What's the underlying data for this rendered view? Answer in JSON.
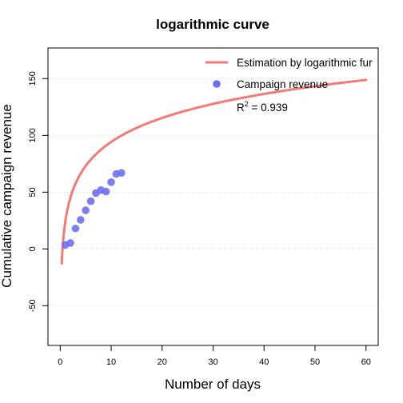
{
  "chart_data": {
    "type": "scatter",
    "title": "logarithmic curve",
    "xlabel": "Number of days",
    "ylabel": "Cumulative campaign revenue",
    "xlim": [
      -2.4,
      62.4
    ],
    "ylim": [
      -85,
      177
    ],
    "x_ticks": [
      0,
      10,
      20,
      30,
      40,
      50,
      60
    ],
    "y_ticks": [
      -50,
      0,
      50,
      100,
      150
    ],
    "grid": "horizontal dotted",
    "legend_position": "top-right",
    "series": [
      {
        "name": "Estimation by logarithmic fur",
        "kind": "line",
        "color": "#f87878",
        "model": "log",
        "x_range": [
          0.3,
          60
        ],
        "fit": {
          "a": 30.5,
          "b": 24.0
        }
      },
      {
        "name": "Campaign revenue",
        "kind": "points",
        "color": "#6f6ff5",
        "x": [
          1,
          2,
          3,
          4,
          5,
          6,
          7,
          8,
          9,
          10,
          11,
          12
        ],
        "y": [
          3.5,
          5.2,
          18,
          25.6,
          34,
          42,
          49.2,
          51.8,
          50.5,
          58.8,
          66,
          67
        ]
      }
    ],
    "annotation": {
      "base": "R",
      "sup": "2",
      "text": " = 0.939"
    }
  }
}
